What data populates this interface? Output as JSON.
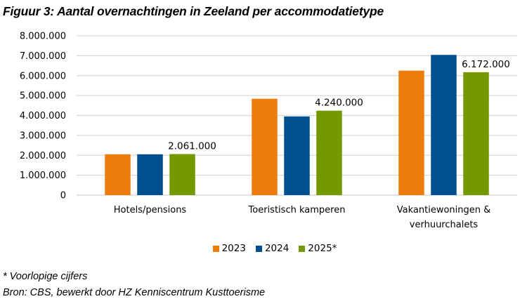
{
  "title": "Figuur 3: Aantal overnachtingen in Zeeland per accommodatietype",
  "footnote": "* Voorlopige cijfers",
  "source": "Bron: CBS, bewerkt door HZ Kenniscentrum Kusttoerisme",
  "chart_data": {
    "type": "bar",
    "title": "Figuur 3: Aantal overnachtingen in Zeeland per accommodatietype",
    "xlabel": "",
    "ylabel": "",
    "ylim": [
      0,
      8000000
    ],
    "grid": true,
    "legend_position": "bottom",
    "y_ticks": [
      "0",
      "1.000.000",
      "2.000.000",
      "3.000.000",
      "4.000.000",
      "5.000.000",
      "6.000.000",
      "7.000.000",
      "8.000.000"
    ],
    "categories": [
      [
        "Hotels/pensions"
      ],
      [
        "Toeristisch kamperen"
      ],
      [
        "Vakantiewoningen &",
        "verhuurchalets"
      ]
    ],
    "series": [
      {
        "name": "2023",
        "color": "#ED7D0B",
        "values": [
          2050000,
          4840000,
          6250000
        ]
      },
      {
        "name": "2024",
        "color": "#004F8F",
        "values": [
          2050000,
          3950000,
          7040000
        ]
      },
      {
        "name": "2025*",
        "color": "#749800",
        "values": [
          2061000,
          4240000,
          6172000
        ]
      }
    ],
    "data_labels": [
      {
        "series": 2,
        "category": 0,
        "text": "2.061.000"
      },
      {
        "series": 2,
        "category": 1,
        "text": "4.240.000"
      },
      {
        "series": 2,
        "category": 2,
        "text": "6.172.000"
      }
    ]
  }
}
